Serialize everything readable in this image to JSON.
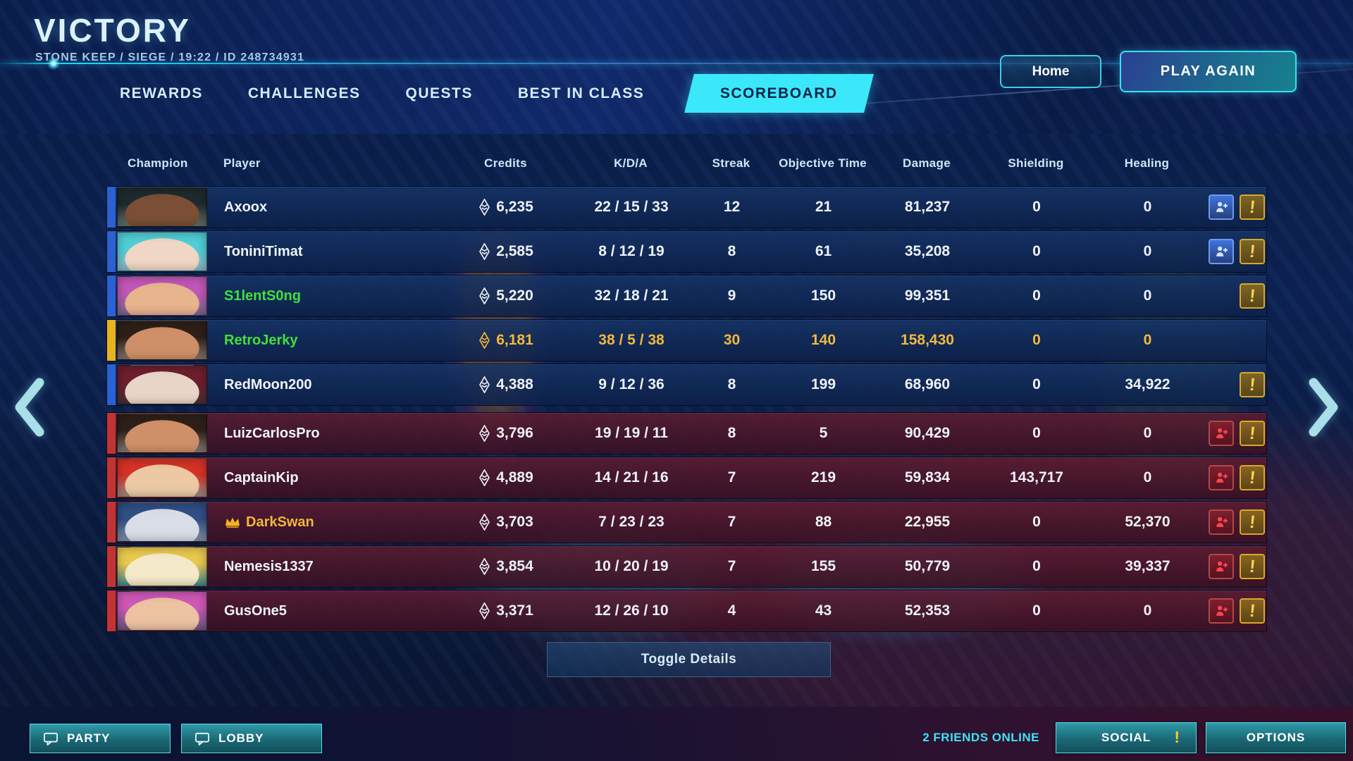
{
  "header": {
    "result_title": "VICTORY",
    "match_info": "STONE KEEP / SIEGE / 19:22 / ID 248734931",
    "home_label": "Home",
    "play_again_label": "PLAY AGAIN"
  },
  "tabs": [
    {
      "label": "REWARDS",
      "active": false
    },
    {
      "label": "CHALLENGES",
      "active": false
    },
    {
      "label": "QUESTS",
      "active": false
    },
    {
      "label": "BEST IN CLASS",
      "active": false
    },
    {
      "label": "SCOREBOARD",
      "active": true
    }
  ],
  "table": {
    "columns": [
      "Champion",
      "Player",
      "Credits",
      "K/D/A",
      "Streak",
      "Objective Time",
      "Damage",
      "Shielding",
      "Healing"
    ],
    "rows": [
      {
        "player": "Axoox",
        "name_color": "white",
        "team": "blue",
        "bar": "blue",
        "stats_gold": false,
        "crown": false,
        "credits": "6,235",
        "kda": "22 / 15 / 33",
        "streak": "12",
        "objective_time": "21",
        "damage": "81,237",
        "shielding": "0",
        "healing": "0",
        "add_friend": "blue",
        "report": true,
        "portrait_colors": [
          "#1e2a2e",
          "#7a4f35",
          "#66756a"
        ]
      },
      {
        "player": "ToniniTimat",
        "name_color": "white",
        "team": "blue",
        "bar": "blue",
        "stats_gold": false,
        "crown": false,
        "credits": "2,585",
        "kda": "8 / 12 / 19",
        "streak": "8",
        "objective_time": "61",
        "damage": "35,208",
        "shielding": "0",
        "healing": "0",
        "add_friend": "blue",
        "report": true,
        "portrait_colors": [
          "#4ecfd6",
          "#f0d6c4",
          "#8fb9c9"
        ]
      },
      {
        "player": "S1lentS0ng",
        "name_color": "green",
        "team": "blue",
        "bar": "blue",
        "stats_gold": false,
        "crown": false,
        "credits": "5,220",
        "kda": "32 / 18 / 21",
        "streak": "9",
        "objective_time": "150",
        "damage": "99,351",
        "shielding": "0",
        "healing": "0",
        "add_friend": "none",
        "report": true,
        "portrait_colors": [
          "#c257b8",
          "#e8b48e",
          "#7a6a8a"
        ]
      },
      {
        "player": "RetroJerky",
        "name_color": "green",
        "team": "blue",
        "bar": "gold",
        "stats_gold": true,
        "crown": false,
        "credits": "6,181",
        "kda": "38 / 5 / 38",
        "streak": "30",
        "objective_time": "140",
        "damage": "158,430",
        "shielding": "0",
        "healing": "0",
        "add_friend": "none",
        "report": false,
        "portrait_colors": [
          "#2e2018",
          "#cf9069",
          "#8a7a70"
        ]
      },
      {
        "player": "RedMoon200",
        "name_color": "white",
        "team": "blue",
        "bar": "blue",
        "stats_gold": false,
        "crown": false,
        "credits": "4,388",
        "kda": "9 / 12 / 36",
        "streak": "8",
        "objective_time": "199",
        "damage": "68,960",
        "shielding": "0",
        "healing": "34,922",
        "add_friend": "none",
        "report": true,
        "portrait_colors": [
          "#6e1f2d",
          "#ead6c8",
          "#4a3038"
        ]
      },
      {
        "player": "LuizCarlosPro",
        "name_color": "white",
        "team": "red",
        "bar": "red",
        "stats_gold": false,
        "crown": false,
        "credits": "3,796",
        "kda": "19 / 19 / 11",
        "streak": "8",
        "objective_time": "5",
        "damage": "90,429",
        "shielding": "0",
        "healing": "0",
        "add_friend": "red",
        "report": true,
        "portrait_colors": [
          "#2e2018",
          "#cf9069",
          "#8a8078"
        ]
      },
      {
        "player": "CaptainKip",
        "name_color": "white",
        "team": "red",
        "bar": "red",
        "stats_gold": false,
        "crown": false,
        "credits": "4,889",
        "kda": "14 / 21 / 16",
        "streak": "7",
        "objective_time": "219",
        "damage": "59,834",
        "shielding": "143,717",
        "healing": "0",
        "add_friend": "red",
        "report": true,
        "portrait_colors": [
          "#d63226",
          "#ecc9a4",
          "#9a8f86"
        ]
      },
      {
        "player": "DarkSwan",
        "name_color": "gold",
        "team": "red",
        "bar": "red",
        "stats_gold": false,
        "crown": true,
        "credits": "3,703",
        "kda": "7 / 23 / 23",
        "streak": "7",
        "objective_time": "88",
        "damage": "22,955",
        "shielding": "0",
        "healing": "52,370",
        "add_friend": "red",
        "report": true,
        "portrait_colors": [
          "#2f4f86",
          "#d9dde6",
          "#8693a8"
        ]
      },
      {
        "player": "Nemesis1337",
        "name_color": "white",
        "team": "red",
        "bar": "red",
        "stats_gold": false,
        "crown": false,
        "credits": "3,854",
        "kda": "10 / 20 / 19",
        "streak": "7",
        "objective_time": "155",
        "damage": "50,779",
        "shielding": "0",
        "healing": "39,337",
        "add_friend": "red",
        "report": true,
        "portrait_colors": [
          "#e9c94e",
          "#f4e9c8",
          "#3f8a98"
        ]
      },
      {
        "player": "GusOne5",
        "name_color": "white",
        "team": "red",
        "bar": "red",
        "stats_gold": false,
        "crown": false,
        "credits": "3,371",
        "kda": "12 / 26 / 10",
        "streak": "4",
        "objective_time": "43",
        "damage": "52,353",
        "shielding": "0",
        "healing": "0",
        "add_friend": "red",
        "report": true,
        "portrait_colors": [
          "#cf58b8",
          "#ecc2a0",
          "#6a5a80"
        ]
      }
    ]
  },
  "toggle_details_label": "Toggle Details",
  "footer": {
    "party_label": "PARTY",
    "lobby_label": "LOBBY",
    "friends_online": "2 FRIENDS ONLINE",
    "social_label": "SOCIAL",
    "social_alert": "!",
    "options_label": "OPTIONS"
  },
  "icons": {
    "report_glyph": "!"
  },
  "colors": {
    "accent_cyan": "#3AE8FA",
    "team_blue": "#2A62D4",
    "team_red": "#C23434",
    "highlight_gold": "#F2B83C",
    "name_green": "#41E03C",
    "friends_online_cyan": "#3FE2F4",
    "report_gold": "#D9A82A"
  }
}
